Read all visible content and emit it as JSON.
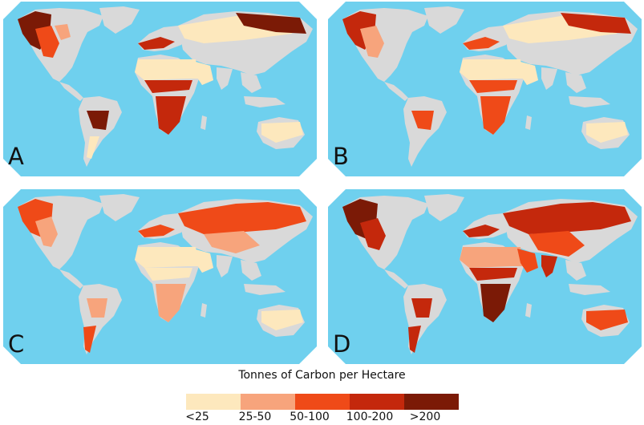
{
  "panels": [
    {
      "letter": "A"
    },
    {
      "letter": "B"
    },
    {
      "letter": "C"
    },
    {
      "letter": "D"
    }
  ],
  "colors": {
    "ocean": "#6fd0ee",
    "land_nodata": "#d9d9d9"
  },
  "legend": {
    "title": "Tonnes of Carbon per Hectare",
    "classes": [
      {
        "label": "<25",
        "color": "#fde8bd"
      },
      {
        "label": "25-50",
        "color": "#f7a47c"
      },
      {
        "label": "50-100",
        "color": "#ef4a18"
      },
      {
        "label": "100-200",
        "color": "#c4280c"
      },
      {
        "label": ">200",
        "color": "#7b1a06"
      }
    ]
  }
}
